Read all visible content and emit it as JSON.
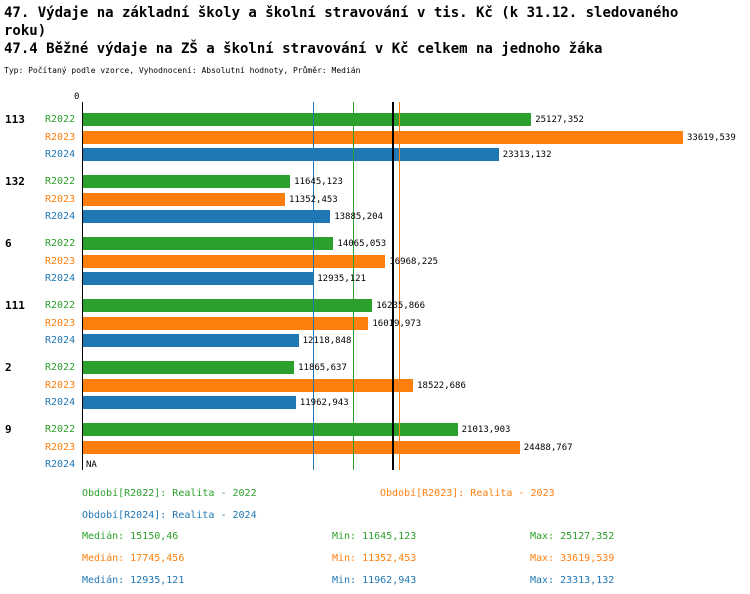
{
  "page": {
    "title_line1": "47. Výdaje na základní školy a školní stravování v tis. Kč (k 31.12. sledovaného",
    "title_line2": "roku)",
    "subtitle": "47.4 Běžné výdaje na ZŠ a školní stravování v Kč celkem na jednoho žáka",
    "meta": "Typ: Počítaný podle vzorce, Vyhodnocení: Absolutní hodnoty, Průměr: Medián"
  },
  "chart_data": {
    "type": "bar",
    "orientation": "horizontal",
    "value_unit": "Kč",
    "axis": {
      "zero_label": "0",
      "x_min": 0,
      "x_max": 33619.539
    },
    "series": [
      {
        "label": "R2022",
        "name": "Realita - 2022",
        "color": "#2ca02c"
      },
      {
        "label": "R2023",
        "name": "Realita - 2023",
        "color": "#ff7f0e"
      },
      {
        "label": "R2024",
        "name": "Realita - 2024",
        "color": "#1f77b4"
      }
    ],
    "groups": [
      {
        "name": "113",
        "values": [
          25127.352,
          33619.539,
          23313.132
        ],
        "labels": [
          "25127,352",
          "33619,539",
          "23313,132"
        ]
      },
      {
        "name": "132",
        "values": [
          11645.123,
          11352.453,
          13885.204
        ],
        "labels": [
          "11645,123",
          "11352,453",
          "13885,204"
        ]
      },
      {
        "name": "6",
        "values": [
          14065.053,
          16968.225,
          12935.121
        ],
        "labels": [
          "14065,053",
          "16968,225",
          "12935,121"
        ]
      },
      {
        "name": "111",
        "values": [
          16235.866,
          16019.973,
          12118.848
        ],
        "labels": [
          "16235,866",
          "16019,973",
          "12118,848"
        ]
      },
      {
        "name": "2",
        "values": [
          11865.637,
          18522.686,
          11962.943
        ],
        "labels": [
          "11865,637",
          "18522,686",
          "11962,943"
        ]
      },
      {
        "name": "9",
        "values": [
          21013.903,
          24488.767,
          null
        ],
        "labels": [
          "21013,903",
          "24488,767",
          "NA"
        ]
      }
    ],
    "reference_lines": [
      {
        "name": "median-r2024",
        "value": 12935.121,
        "color": "#1f77b4",
        "width": 1
      },
      {
        "name": "median-r2022",
        "value": 15150.46,
        "color": "#2ca02c",
        "width": 1
      },
      {
        "name": "overall-mean",
        "value": 17360,
        "color": "#000000",
        "width": 2
      },
      {
        "name": "median-r2023",
        "value": 17745.456,
        "color": "#ff7f0e",
        "width": 1
      }
    ],
    "legend": [
      {
        "text": "Období[R2022]: Realita - 2022",
        "color": "#2ca02c"
      },
      {
        "text": "Období[R2023]: Realita - 2023",
        "color": "#ff7f0e"
      },
      {
        "text": "Období[R2024]: Realita - 2024",
        "color": "#1f77b4"
      }
    ],
    "stats": [
      {
        "median": "Medián: 15150,46",
        "min": "Min: 11645,123",
        "max": "Max: 25127,352",
        "color": "#2ca02c"
      },
      {
        "median": "Medián: 17745,456",
        "min": "Min: 11352,453",
        "max": "Max: 33619,539",
        "color": "#ff7f0e"
      },
      {
        "median": "Medián: 12935,121",
        "min": "Min: 11962,943",
        "max": "Max: 23313,132",
        "color": "#1f77b4"
      }
    ]
  }
}
